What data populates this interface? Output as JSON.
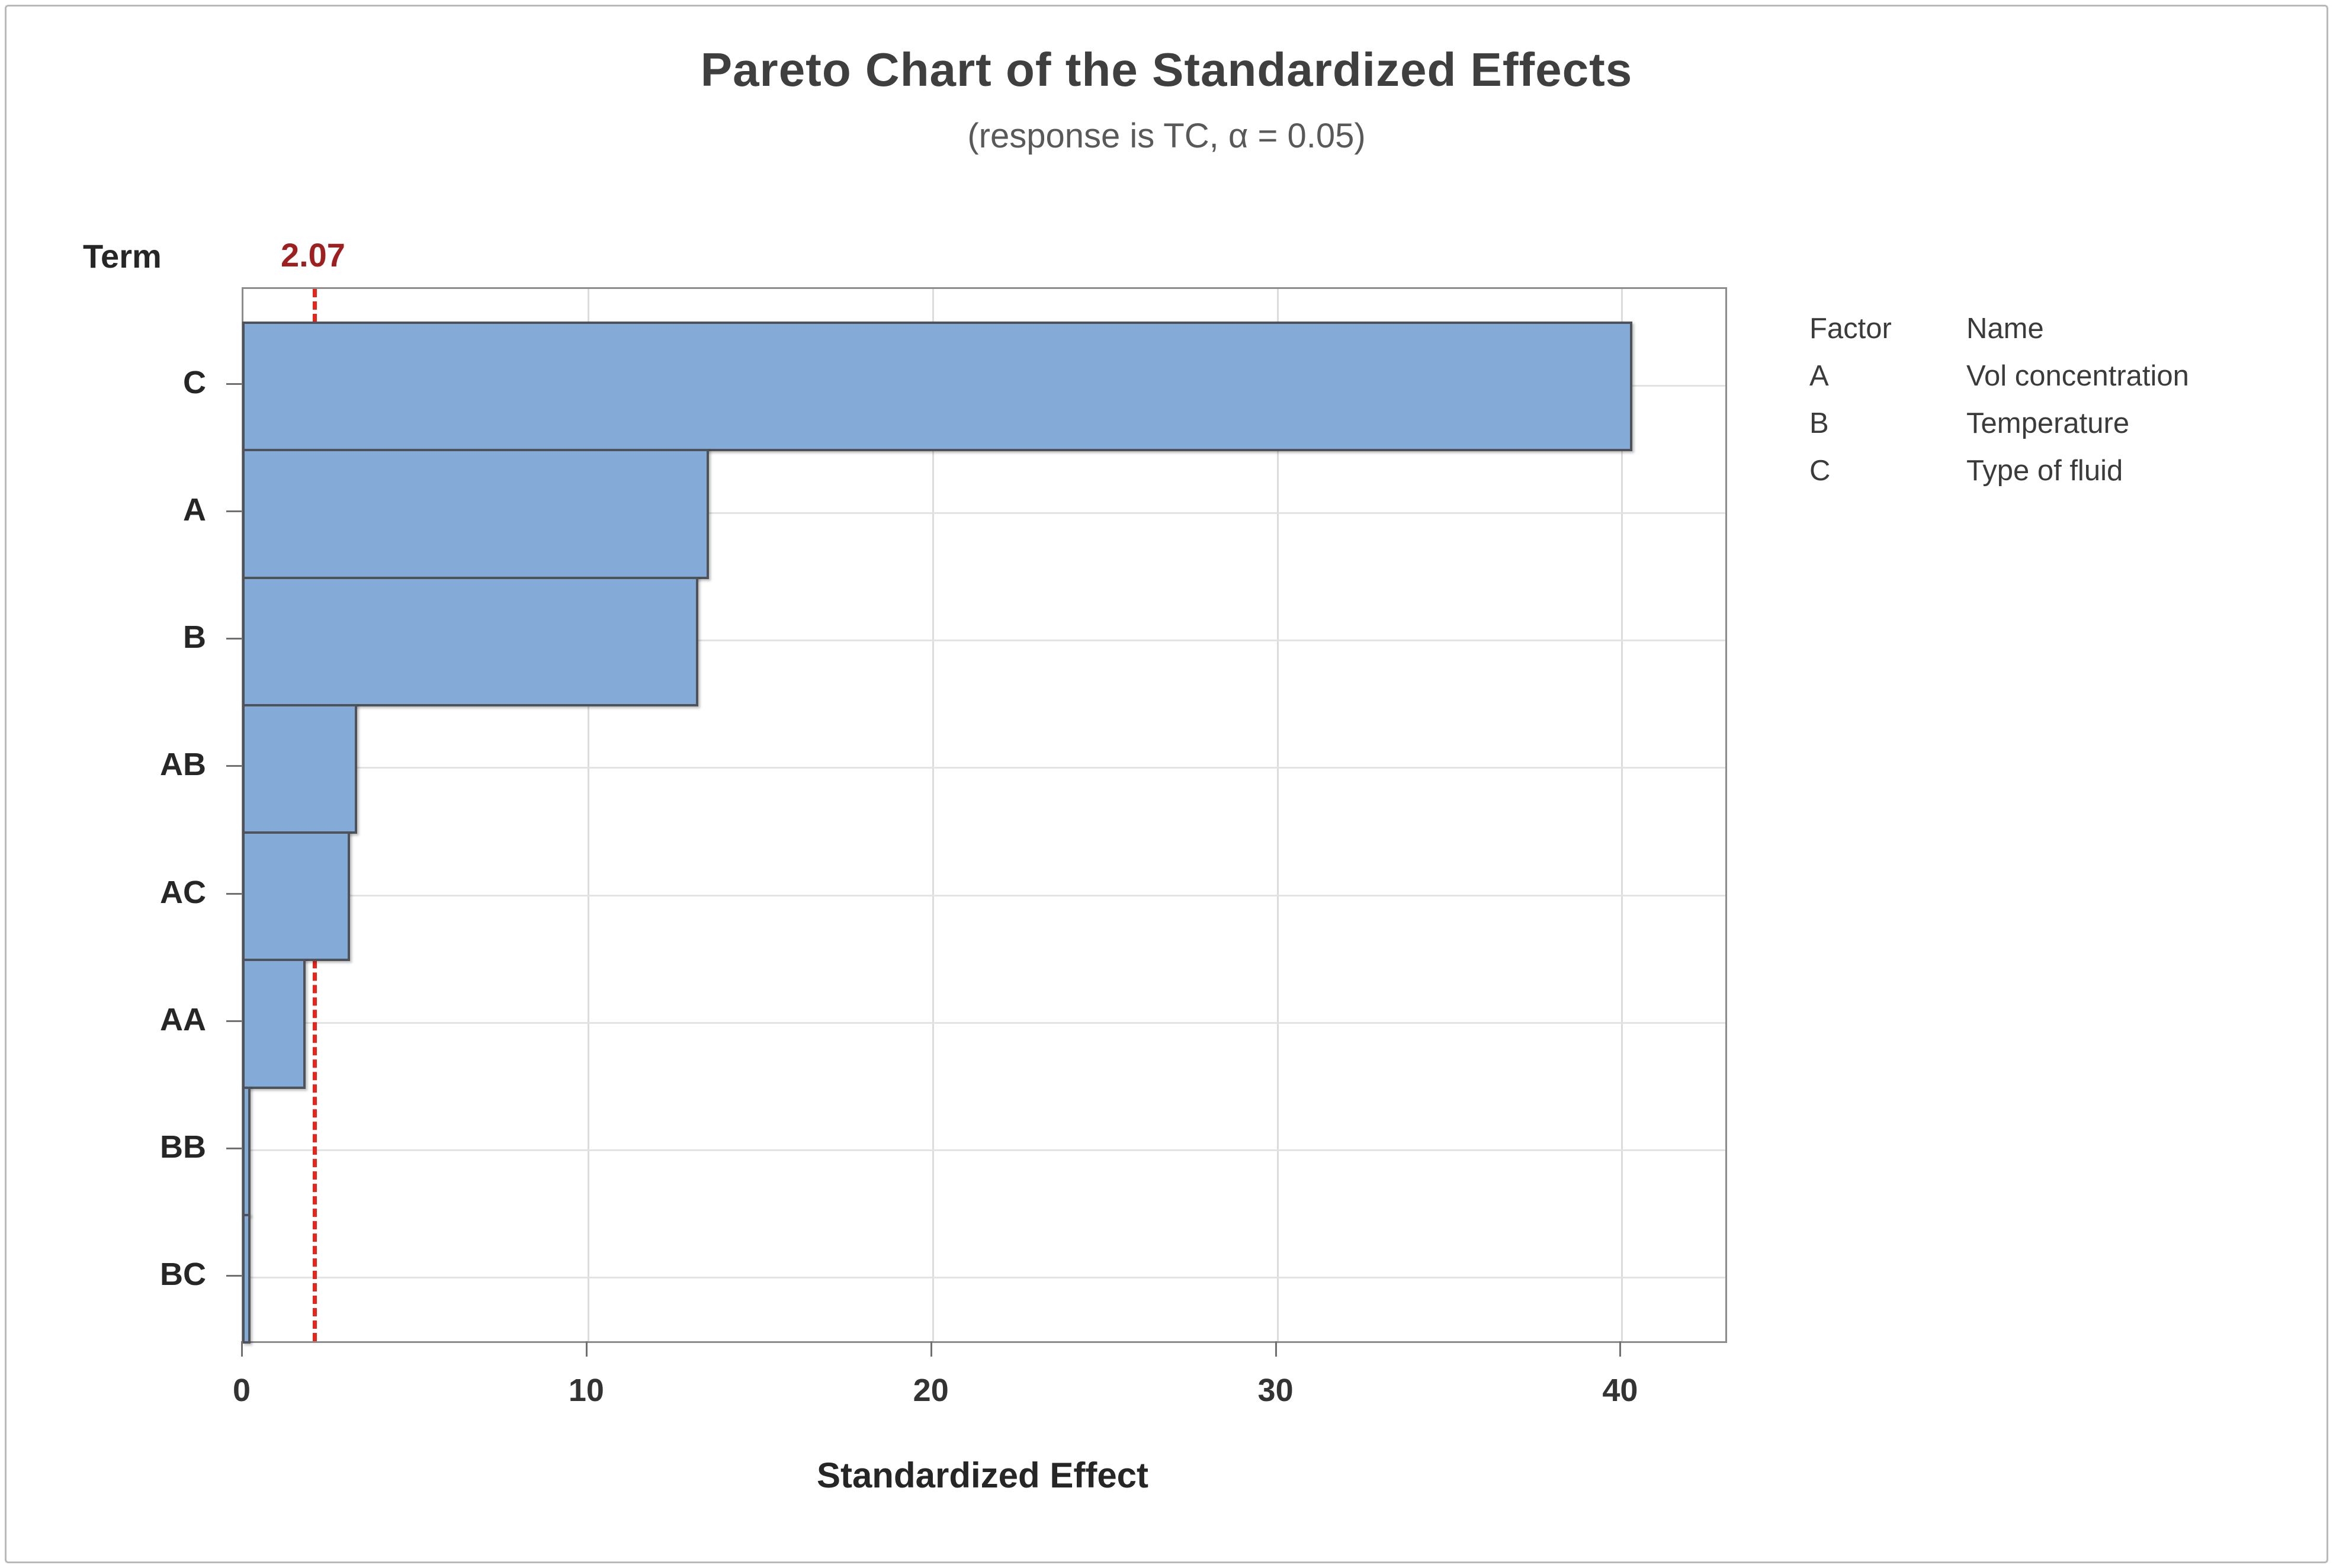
{
  "chart_data": {
    "type": "bar",
    "orientation": "horizontal",
    "title": "Pareto Chart of the Standardized Effects",
    "subtitle": "(response is TC, α = 0.05)",
    "xlabel": "Standardized Effect",
    "ylabel": "Term",
    "categories": [
      "C",
      "A",
      "B",
      "AB",
      "AC",
      "AA",
      "BB",
      "BC"
    ],
    "values": [
      40.3,
      13.5,
      13.2,
      3.3,
      3.1,
      1.8,
      0.2,
      0.2
    ],
    "x_ticks": [
      0,
      10,
      20,
      30,
      40
    ],
    "xlim": [
      0,
      43
    ],
    "grid": "on",
    "reference_line": {
      "value": 2.07,
      "label": "2.07"
    },
    "legend_position": "right",
    "colors": {
      "bar_fill": "#84aad8",
      "bar_border": "#4d5359",
      "reference_line": "#e3271d",
      "reference_label": "#9e1f1f",
      "plot_border": "#8c8c8c",
      "gridline": "#dcdcdc",
      "title_text": "#3f3f3f",
      "subtitle_text": "#595959",
      "label_text": "#262626"
    }
  },
  "legend": {
    "header": {
      "factor": "Factor",
      "name": "Name"
    },
    "rows": [
      {
        "factor": "A",
        "name": "Vol concentration"
      },
      {
        "factor": "B",
        "name": "Temperature"
      },
      {
        "factor": "C",
        "name": "Type of fluid"
      }
    ]
  }
}
